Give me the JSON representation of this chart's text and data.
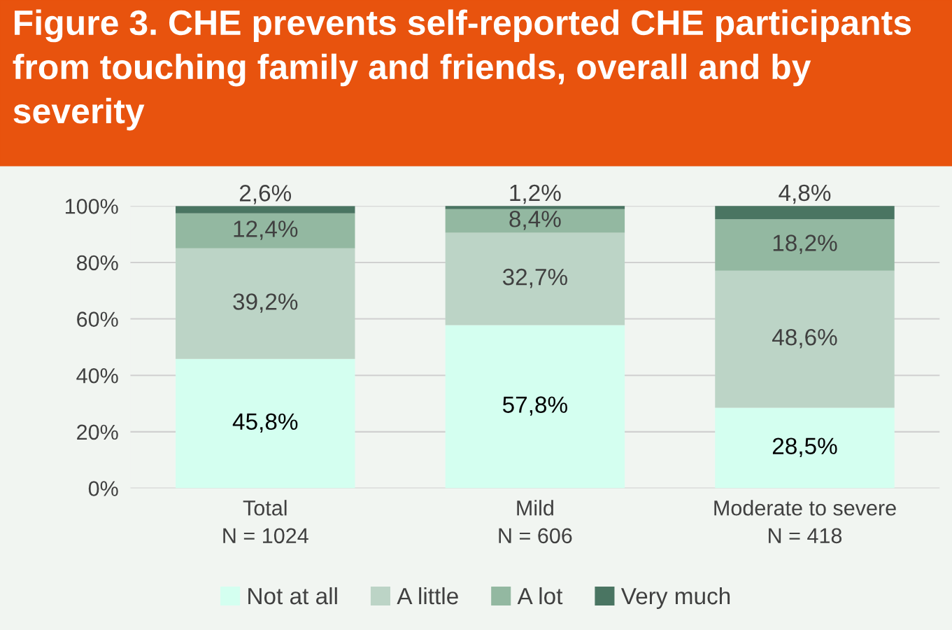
{
  "chart_data": {
    "type": "bar",
    "title": "Figure 3. CHE prevents self-reported CHE participants from touching family and friends, overall and by severity",
    "categories": [
      "Total\nN = 1024",
      "Mild\nN = 606",
      "Moderate to severe\nN = 418"
    ],
    "stacked": true,
    "series": [
      {
        "name": "Not at all",
        "color": "#d4fff0",
        "values": [
          45.8,
          57.8,
          28.5
        ],
        "value_labels": [
          "45,8%",
          "57,8%",
          "28,5%"
        ]
      },
      {
        "name": "A little",
        "color": "#bcd4c6",
        "values": [
          39.2,
          32.7,
          48.6
        ],
        "value_labels": [
          "39,2%",
          "32,7%",
          "48,6%"
        ]
      },
      {
        "name": "A lot",
        "color": "#93b8a1",
        "values": [
          12.4,
          8.4,
          18.2
        ],
        "value_labels": [
          "12,4%",
          "8,4%",
          "18,2%"
        ]
      },
      {
        "name": "Very much",
        "color": "#4a7562",
        "values": [
          2.6,
          1.2,
          4.8
        ],
        "value_labels": [
          "2,6%",
          "1,2%",
          "4,8%"
        ]
      }
    ],
    "ylim": [
      0,
      100
    ],
    "yticks": [
      {
        "value": 0,
        "label": "0%"
      },
      {
        "value": 20,
        "label": "20%"
      },
      {
        "value": 40,
        "label": "40%"
      },
      {
        "value": 60,
        "label": "60%"
      },
      {
        "value": 80,
        "label": "80%"
      },
      {
        "value": 100,
        "label": "100%"
      }
    ],
    "grid": "y",
    "legend": "bottom"
  }
}
